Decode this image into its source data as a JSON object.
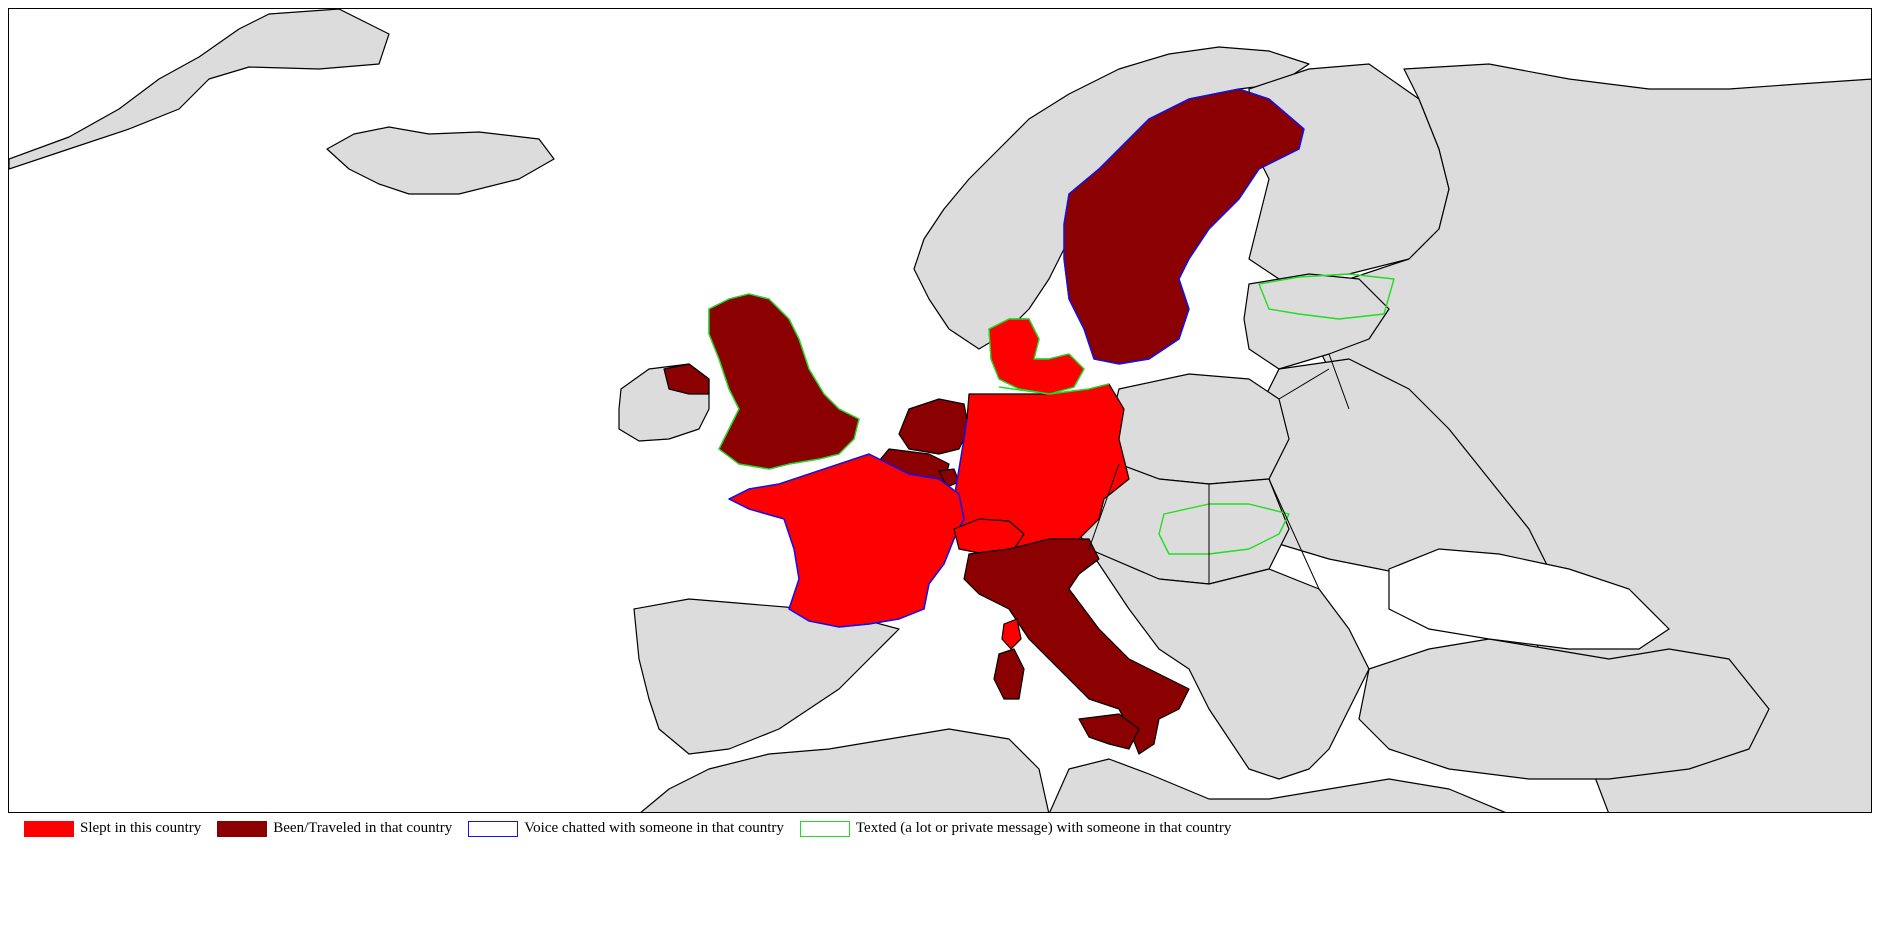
{
  "map": {
    "colors": {
      "slept": "#ff0000",
      "been": "#8b0000",
      "voice": "#1010ff",
      "texted": "#22dd22",
      "land": "#dcdcdc",
      "sea": "#ffffff"
    },
    "countries": {
      "slept": [
        "France",
        "Germany",
        "Denmark",
        "Switzerland",
        "Corsica"
      ],
      "been": [
        "United Kingdom",
        "Ireland",
        "Sweden",
        "Netherlands",
        "Italy",
        "Sardinia",
        "Sicily",
        "Luxembourg"
      ],
      "voice": [
        "Sweden",
        "France",
        "Germany",
        "Switzerland"
      ],
      "texted": [
        "United Kingdom",
        "Denmark",
        "Estonia",
        "Hungary",
        "Germany"
      ]
    }
  },
  "legend": [
    {
      "key": "slept",
      "label": "Slept in this country"
    },
    {
      "key": "been",
      "label": "Been/Traveled in that country"
    },
    {
      "key": "voice",
      "label": "Voice chatted with someone in that country"
    },
    {
      "key": "texted",
      "label": "Texted (a lot or private message) with someone in that country"
    }
  ]
}
